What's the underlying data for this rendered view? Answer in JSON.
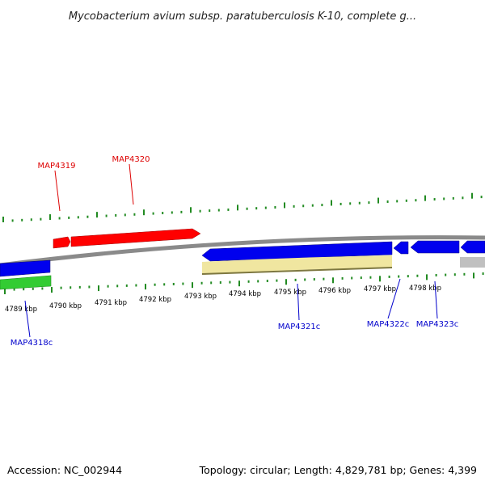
{
  "title": "Mycobacterium avium subsp. paratuberculosis K-10, complete g...",
  "footer": {
    "accession": "Accession: NC_002944",
    "summary": "Topology: circular; Length: 4,829,781 bp; Genes: 4,399"
  },
  "colors": {
    "forward_gene": "#ff0000",
    "reverse_gene": "#0000ee",
    "backbone": "#8a8a8a",
    "gc_tick": "#228b22",
    "feature_green": "#33cc33",
    "feature_yellow": "#f0e6a0",
    "feature_gray": "#c0c0c0",
    "label_forward": "#dd0000",
    "label_reverse": "#0000cc"
  },
  "scale": {
    "unit": "kbp",
    "ticks": [
      {
        "label": "4789 kbp"
      },
      {
        "label": "4790 kbp"
      },
      {
        "label": "4791 kbp"
      },
      {
        "label": "4792 kbp"
      },
      {
        "label": "4793 kbp"
      },
      {
        "label": "4794 kbp"
      },
      {
        "label": "4795 kbp"
      },
      {
        "label": "4796 kbp"
      },
      {
        "label": "4797 kbp"
      },
      {
        "label": "4798 kbp"
      }
    ]
  },
  "genes": [
    {
      "name": "MAP4318c",
      "strand": "reverse"
    },
    {
      "name": "MAP4319",
      "strand": "forward"
    },
    {
      "name": "MAP4320",
      "strand": "forward"
    },
    {
      "name": "MAP4321c",
      "strand": "reverse"
    },
    {
      "name": "MAP4322c",
      "strand": "reverse"
    },
    {
      "name": "MAP4323c",
      "strand": "reverse"
    }
  ]
}
